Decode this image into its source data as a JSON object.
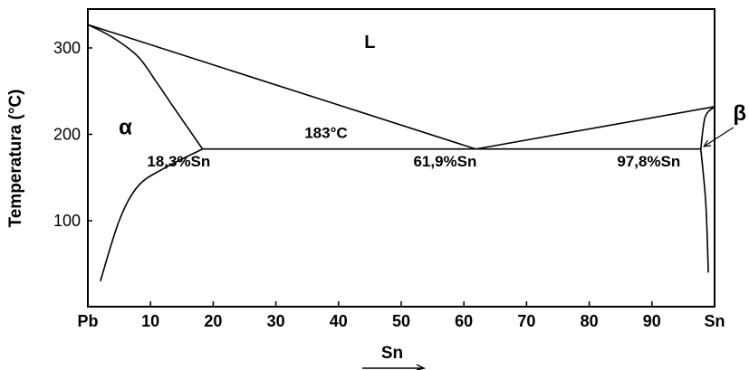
{
  "chart_data": {
    "type": "phase-diagram",
    "title": "",
    "ylabel": "Temperatura (°C)",
    "xlabel": "Sn",
    "xlim": [
      0,
      100
    ],
    "ylim": [
      0,
      340
    ],
    "x_ticks": [
      {
        "value": 0,
        "label": "Pb"
      },
      {
        "value": 10,
        "label": "10"
      },
      {
        "value": 20,
        "label": "20"
      },
      {
        "value": 30,
        "label": "30"
      },
      {
        "value": 40,
        "label": "40"
      },
      {
        "value": 50,
        "label": "50"
      },
      {
        "value": 60,
        "label": "60"
      },
      {
        "value": 70,
        "label": "70"
      },
      {
        "value": 80,
        "label": "80"
      },
      {
        "value": 90,
        "label": "90"
      },
      {
        "value": 100,
        "label": "Sn"
      }
    ],
    "y_ticks": [
      {
        "value": 100,
        "label": "100"
      },
      {
        "value": 200,
        "label": "200"
      },
      {
        "value": 300,
        "label": "300"
      }
    ],
    "region_labels": [
      {
        "text": "L",
        "x": 45,
        "y": 300
      },
      {
        "text": "α",
        "x": 6,
        "y": 200
      },
      {
        "text": "β",
        "x": 104,
        "y": 216
      }
    ],
    "annotations": [
      {
        "text": "183°C",
        "x": 38,
        "y": 196
      },
      {
        "text": "18,3%Sn",
        "x": 14.5,
        "y": 163
      },
      {
        "text": "61,9%Sn",
        "x": 57,
        "y": 163
      },
      {
        "text": "97,8%Sn",
        "x": 89.5,
        "y": 163
      }
    ],
    "curves": [
      {
        "name": "liquidus-left",
        "points": [
          [
            0,
            327
          ],
          [
            61.9,
            183
          ]
        ]
      },
      {
        "name": "liquidus-right",
        "points": [
          [
            61.9,
            183
          ],
          [
            100,
            232
          ]
        ]
      },
      {
        "name": "eutectic-isotherm",
        "points": [
          [
            18.3,
            183
          ],
          [
            97.8,
            183
          ]
        ]
      },
      {
        "name": "solidus-alpha",
        "points": [
          [
            0,
            327
          ],
          [
            4,
            312
          ],
          [
            8,
            290
          ],
          [
            11,
            260
          ],
          [
            14,
            228
          ],
          [
            18.3,
            183
          ]
        ]
      },
      {
        "name": "solvus-alpha",
        "points": [
          [
            18.3,
            183
          ],
          [
            12,
            160
          ],
          [
            8,
            140
          ],
          [
            5,
            100
          ],
          [
            2,
            30
          ]
        ]
      },
      {
        "name": "solidus-beta",
        "points": [
          [
            100,
            232
          ],
          [
            98.5,
            220
          ],
          [
            97.8,
            183
          ]
        ]
      },
      {
        "name": "solvus-beta",
        "points": [
          [
            97.8,
            183
          ],
          [
            98.6,
            120
          ],
          [
            99,
            40
          ]
        ]
      }
    ],
    "arrows": [
      {
        "name": "beta-pointer",
        "from": [
          103,
          208
        ],
        "to": [
          98.3,
          186
        ]
      }
    ]
  }
}
